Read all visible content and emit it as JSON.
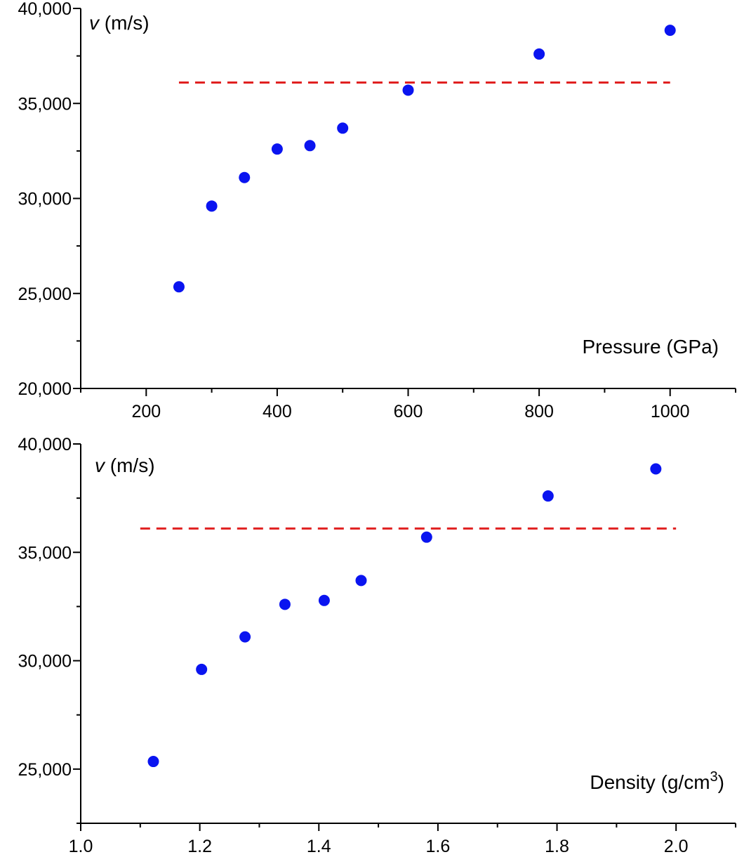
{
  "chart_data": [
    {
      "type": "scatter",
      "id": "pressure",
      "ylabel_var": "v",
      "ylabel_unit": " (m/s)",
      "xlabel": "Pressure (GPa)",
      "xlabel_sup": "",
      "xlabel_tail": "",
      "x": [
        250,
        300,
        350,
        400,
        450,
        500,
        600,
        800,
        1000
      ],
      "y": [
        25350,
        29600,
        31100,
        32600,
        32780,
        33700,
        35700,
        37600,
        38850
      ],
      "xlim": [
        100,
        1100
      ],
      "ylim": [
        20000,
        40000
      ],
      "xticks": [
        200,
        400,
        600,
        800,
        1000
      ],
      "xtick_labels": [
        "200",
        "400",
        "600",
        "800",
        "1000"
      ],
      "xminor": [
        100,
        300,
        500,
        700,
        900,
        1100
      ],
      "yticks": [
        20000,
        25000,
        30000,
        35000,
        40000
      ],
      "ytick_labels": [
        "20,000",
        "25,000",
        "30,000",
        "35,000",
        "40,000"
      ],
      "yminor": [
        22500,
        27500,
        32500,
        37500
      ],
      "reference_line": {
        "y": 36100,
        "x_from": 250,
        "x_to": 1000,
        "color": "#e02020"
      },
      "marker_color": "#0a14f0"
    },
    {
      "type": "scatter",
      "id": "density",
      "ylabel_var": "v",
      "ylabel_unit": " (m/s)",
      "xlabel": "Density (g/cm",
      "xlabel_sup": "3",
      "xlabel_tail": ")",
      "x": [
        1.122,
        1.203,
        1.276,
        1.343,
        1.409,
        1.471,
        1.581,
        1.785,
        1.966
      ],
      "y": [
        25350,
        29600,
        31100,
        32600,
        32780,
        33700,
        35700,
        37600,
        38850
      ],
      "xlim": [
        1.0,
        2.1
      ],
      "ylim": [
        22500,
        40000
      ],
      "xticks": [
        1.0,
        1.2,
        1.4,
        1.6,
        1.8,
        2.0
      ],
      "xtick_labels": [
        "1.0",
        "1.2",
        "1.4",
        "1.6",
        "1.8",
        "2.0"
      ],
      "xminor": [
        1.1,
        1.3,
        1.5,
        1.7,
        1.9,
        2.1
      ],
      "yticks": [
        25000,
        30000,
        35000,
        40000
      ],
      "ytick_labels": [
        "25,000",
        "30,000",
        "35,000",
        "40,000"
      ],
      "yminor": [
        22500,
        27500,
        32500,
        37500
      ],
      "reference_line": {
        "y": 36100,
        "x_from": 1.1,
        "x_to": 2.0,
        "color": "#e02020"
      },
      "marker_color": "#0a14f0"
    }
  ]
}
